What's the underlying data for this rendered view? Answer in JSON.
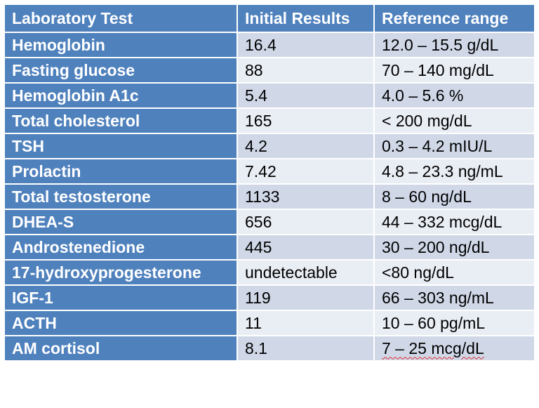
{
  "table": {
    "headers": [
      "Laboratory Test",
      "Initial Results",
      "Reference range"
    ],
    "rows": [
      {
        "test": "Hemoglobin",
        "result": "16.4",
        "range": "12.0 – 15.5 g/dL"
      },
      {
        "test": "Fasting glucose",
        "result": "88",
        "range": "70 – 140 mg/dL"
      },
      {
        "test": "Hemoglobin A1c",
        "result": "5.4",
        "range": "4.0 – 5.6 %"
      },
      {
        "test": "Total cholesterol",
        "result": "165",
        "range": "< 200 mg/dL"
      },
      {
        "test": "TSH",
        "result": "4.2",
        "range": "0.3 – 4.2  mIU/L"
      },
      {
        "test": "Prolactin",
        "result": "7.42",
        "range": "4.8 – 23.3 ng/mL"
      },
      {
        "test": "Total testosterone",
        "result": "1133",
        "range": "8 – 60 ng/dL"
      },
      {
        "test": "DHEA-S",
        "result": "656",
        "range": "44 – 332 mcg/dL"
      },
      {
        "test": "Androstenedione",
        "result": "445",
        "range": "30 – 200 ng/dL"
      },
      {
        "test": "17-hydroxyprogesterone",
        "result": "undetectable",
        "range": "<80 ng/dL"
      },
      {
        "test": "IGF-1",
        "result": "119",
        "range": "66 – 303 ng/mL"
      },
      {
        "test": "ACTH",
        "result": "11",
        "range": "10 – 60 pg/mL"
      },
      {
        "test": "AM cortisol",
        "result": "8.1",
        "range": "7 – 25 mcg/dL"
      }
    ]
  },
  "colors": {
    "header": "#4f81bd",
    "row_dark": "#d0d8e8",
    "row_light": "#e9edf4",
    "spellcheck": "#e03030"
  }
}
